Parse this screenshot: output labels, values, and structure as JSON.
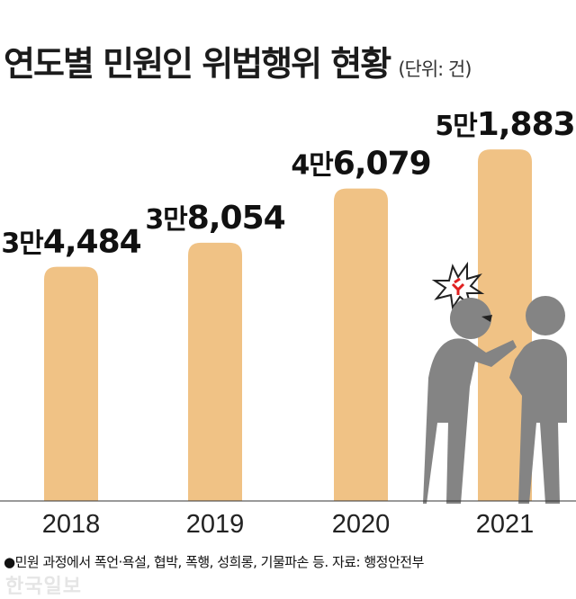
{
  "header": {
    "title": "연도별 민원인 위법행위 현황",
    "unit": "(단위: 건)"
  },
  "chart_data": {
    "type": "bar",
    "categories": [
      "2018",
      "2019",
      "2020",
      "2021"
    ],
    "values": [
      34484,
      38054,
      46079,
      51883
    ],
    "value_labels": [
      {
        "prefix": "3만",
        "rest": "4,484"
      },
      {
        "prefix": "3만",
        "rest": "8,054"
      },
      {
        "prefix": "4만",
        "rest": "6,079"
      },
      {
        "prefix": "5만",
        "rest": "1,883"
      }
    ],
    "unit": "건",
    "bar_color": "#f0c285",
    "grid": false
  },
  "illustration": {
    "figure_color": "#848484",
    "anger_icon_color": "#e02020"
  },
  "footer": {
    "note": "●민원 과정에서 폭언·욕설, 협박, 폭행, 성희롱, 기물파손 등. 자료: 행정안전부",
    "watermark": "한국일보"
  }
}
